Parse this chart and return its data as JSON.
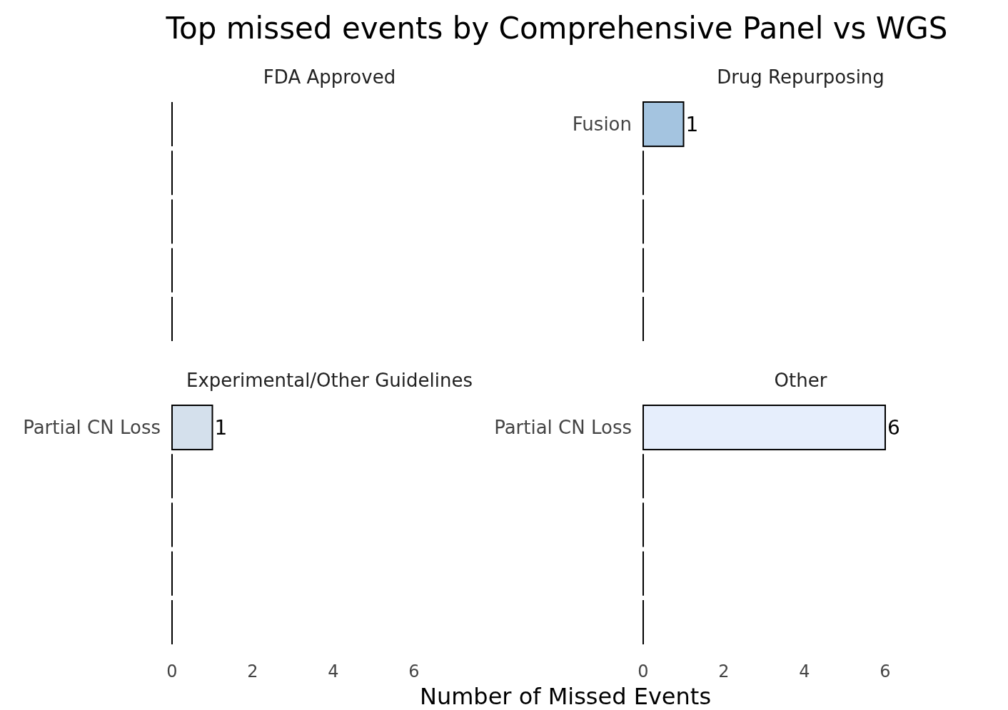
{
  "chart_data": [
    {
      "type": "other",
      "title": "Top missed events by Comprehensive Panel vs WGS",
      "subtitle": "FDA Approved"
    },
    {
      "type": "bar",
      "orientation": "horizontal",
      "subtitle": "Drug Repurposing",
      "categories": [
        "Fusion"
      ],
      "values": [
        1
      ],
      "value_labels": [
        "1"
      ],
      "colors": [
        "#a4c4e0"
      ],
      "xlim": [
        0,
        6
      ],
      "tick_labels": "y"
    },
    {
      "type": "bar",
      "orientation": "horizontal",
      "subtitle": "Experimental/Other Guidelines",
      "xlabel": "Number of Missed Events",
      "categories": [
        "Partial CN Loss"
      ],
      "values": [
        1
      ],
      "value_labels": [
        "1"
      ],
      "colors": [
        "#d4e0ec"
      ],
      "xlim": [
        0,
        6
      ],
      "xticks": [
        0,
        2,
        4,
        6
      ]
    },
    {
      "type": "bar",
      "orientation": "horizontal",
      "subtitle": "Other",
      "categories": [
        "Partial CN Loss"
      ],
      "values": [
        6
      ],
      "value_labels": [
        "6"
      ],
      "colors": [
        "#e6eefc"
      ],
      "xlim": [
        0,
        6
      ],
      "xticks": [
        0,
        2,
        4,
        6
      ]
    }
  ]
}
